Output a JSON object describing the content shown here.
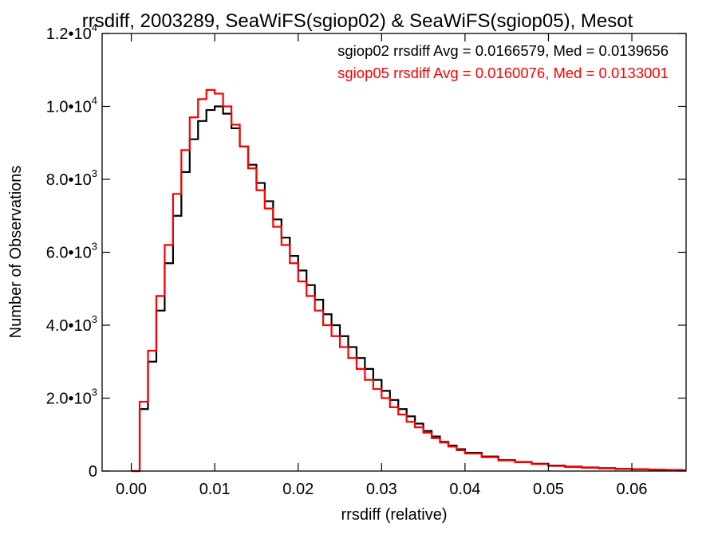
{
  "chart_data": {
    "type": "line",
    "style": "step histogram",
    "title": "rrsdiff, 2003289, SeaWiFS(sgiop02) & SeaWiFS(sgiop05), Mesot",
    "xlabel": "rrsdiff (relative)",
    "ylabel": "Number of Observations",
    "xlim": [
      -0.0035,
      0.0665
    ],
    "ylim": [
      0,
      12000
    ],
    "grid": false,
    "legend_position": "top-right",
    "x_ticks": [
      {
        "value": 0.0,
        "label": "0.00"
      },
      {
        "value": 0.01,
        "label": "0.01"
      },
      {
        "value": 0.02,
        "label": "0.02"
      },
      {
        "value": 0.03,
        "label": "0.03"
      },
      {
        "value": 0.04,
        "label": "0.04"
      },
      {
        "value": 0.05,
        "label": "0.05"
      },
      {
        "value": 0.06,
        "label": "0.06"
      }
    ],
    "y_ticks": [
      {
        "value": 0,
        "mant": "0",
        "exp": ""
      },
      {
        "value": 2000,
        "mant": "2.0•10",
        "exp": "3"
      },
      {
        "value": 4000,
        "mant": "4.0•10",
        "exp": "3"
      },
      {
        "value": 6000,
        "mant": "6.0•10",
        "exp": "3"
      },
      {
        "value": 8000,
        "mant": "8.0•10",
        "exp": "3"
      },
      {
        "value": 10000,
        "mant": "1.0•10",
        "exp": "4"
      },
      {
        "value": 12000,
        "mant": "1.2•10",
        "exp": "4"
      }
    ],
    "series": [
      {
        "name": "sgiop02 rrsdiff Avg = 0.0166579, Med = 0.0139656",
        "color": "#000000",
        "x": [
          0.0,
          0.001,
          0.002,
          0.003,
          0.004,
          0.005,
          0.006,
          0.007,
          0.008,
          0.009,
          0.01,
          0.011,
          0.012,
          0.013,
          0.014,
          0.015,
          0.016,
          0.017,
          0.018,
          0.019,
          0.02,
          0.021,
          0.022,
          0.023,
          0.024,
          0.025,
          0.026,
          0.027,
          0.028,
          0.029,
          0.03,
          0.031,
          0.032,
          0.033,
          0.034,
          0.035,
          0.036,
          0.037,
          0.038,
          0.039,
          0.04,
          0.042,
          0.044,
          0.046,
          0.048,
          0.05,
          0.052,
          0.054,
          0.056,
          0.058,
          0.06,
          0.062,
          0.064,
          0.066
        ],
        "y": [
          0,
          1700,
          3000,
          4400,
          5700,
          7000,
          8200,
          9100,
          9600,
          9900,
          10000,
          9800,
          9400,
          8900,
          8400,
          7900,
          7400,
          6900,
          6400,
          5900,
          5500,
          5100,
          4700,
          4300,
          4000,
          3700,
          3400,
          3100,
          2800,
          2500,
          2200,
          1950,
          1700,
          1500,
          1300,
          1100,
          950,
          800,
          700,
          600,
          500,
          400,
          300,
          250,
          200,
          150,
          120,
          100,
          80,
          60,
          50,
          40,
          30,
          20
        ]
      },
      {
        "name": "sgiop05 rrsdiff Avg = 0.0160076, Med = 0.0133001",
        "color": "#ff0000",
        "x": [
          0.0,
          0.001,
          0.002,
          0.003,
          0.004,
          0.005,
          0.006,
          0.007,
          0.008,
          0.009,
          0.01,
          0.011,
          0.012,
          0.013,
          0.014,
          0.015,
          0.016,
          0.017,
          0.018,
          0.019,
          0.02,
          0.021,
          0.022,
          0.023,
          0.024,
          0.025,
          0.026,
          0.027,
          0.028,
          0.029,
          0.03,
          0.031,
          0.032,
          0.033,
          0.034,
          0.035,
          0.036,
          0.037,
          0.038,
          0.039,
          0.04,
          0.042,
          0.044,
          0.046,
          0.048,
          0.05,
          0.052,
          0.054,
          0.056,
          0.058,
          0.06,
          0.062,
          0.064,
          0.066
        ],
        "y": [
          0,
          1900,
          3300,
          4800,
          6200,
          7600,
          8800,
          9700,
          10200,
          10450,
          10350,
          10000,
          9500,
          8900,
          8300,
          7700,
          7200,
          6700,
          6200,
          5700,
          5200,
          4800,
          4400,
          4000,
          3700,
          3400,
          3100,
          2800,
          2500,
          2250,
          2000,
          1750,
          1550,
          1350,
          1200,
          1050,
          900,
          780,
          670,
          570,
          480,
          380,
          290,
          240,
          190,
          140,
          110,
          90,
          70,
          55,
          45,
          35,
          25,
          15
        ]
      }
    ]
  }
}
